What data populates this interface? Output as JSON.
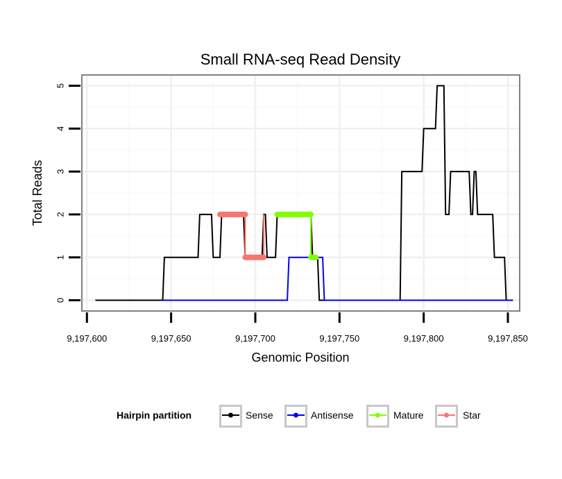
{
  "chart_data": {
    "type": "line",
    "title": "Small RNA-seq Read Density",
    "xlabel": "Genomic Position",
    "ylabel": "Total Reads",
    "xlim": [
      9197597,
      9197857
    ],
    "ylim": [
      -0.25,
      5.25
    ],
    "x_ticks": [
      9197600,
      9197650,
      9197700,
      9197750,
      9197800,
      9197850
    ],
    "x_tick_labels": [
      "9,197,600",
      "9,197,650",
      "9,197,700",
      "9,197,750",
      "9,197,800",
      "9,197,850"
    ],
    "y_ticks": [
      0,
      1,
      2,
      3,
      4,
      5
    ],
    "y_tick_labels": [
      "0",
      "1",
      "2",
      "3",
      "4",
      "5"
    ],
    "grid": true,
    "legend": {
      "title": "Hairpin partition",
      "position": "bottom",
      "entries": [
        "Sense",
        "Antisense",
        "Mature",
        "Star"
      ]
    },
    "series": [
      {
        "name": "Sense",
        "color": "#000000",
        "marker": false,
        "x": [
          9197605,
          9197645,
          9197646,
          9197666,
          9197667,
          9197674,
          9197675,
          9197679,
          9197680,
          9197693,
          9197694,
          9197704,
          9197705,
          9197706,
          9197707,
          9197712,
          9197713,
          9197733,
          9197734,
          9197737,
          9197738,
          9197786,
          9197787,
          9197799,
          9197800,
          9197807,
          9197808,
          9197812,
          9197813,
          9197815,
          9197816,
          9197827,
          9197828,
          9197829,
          9197830,
          9197831,
          9197832,
          9197841,
          9197842,
          9197848,
          9197849,
          9197853
        ],
        "y": [
          0,
          0,
          1,
          1,
          2,
          2,
          1,
          1,
          2,
          2,
          1,
          1,
          2,
          2,
          1,
          1,
          2,
          2,
          1,
          1,
          0,
          0,
          3,
          3,
          4,
          4,
          5,
          5,
          2,
          2,
          3,
          3,
          2,
          2,
          3,
          3,
          2,
          2,
          1,
          1,
          0,
          0
        ]
      },
      {
        "name": "Antisense",
        "color": "#0000ff",
        "marker": false,
        "x": [
          9197645,
          9197719,
          9197720,
          9197740,
          9197741,
          9197852
        ],
        "y": [
          0,
          0,
          1,
          1,
          0,
          0
        ]
      },
      {
        "name": "Mature",
        "color": "#80ff00",
        "marker": true,
        "x": [
          9197713,
          9197733,
          9197733,
          9197736
        ],
        "y": [
          2,
          2,
          1,
          1
        ]
      },
      {
        "name": "Star",
        "color": "#f8766d",
        "marker": true,
        "x": [
          9197679,
          9197694,
          9197694,
          9197695,
          9197704,
          9197705,
          9197705
        ],
        "y": [
          2,
          2,
          1,
          1,
          1,
          1,
          2
        ]
      }
    ]
  }
}
